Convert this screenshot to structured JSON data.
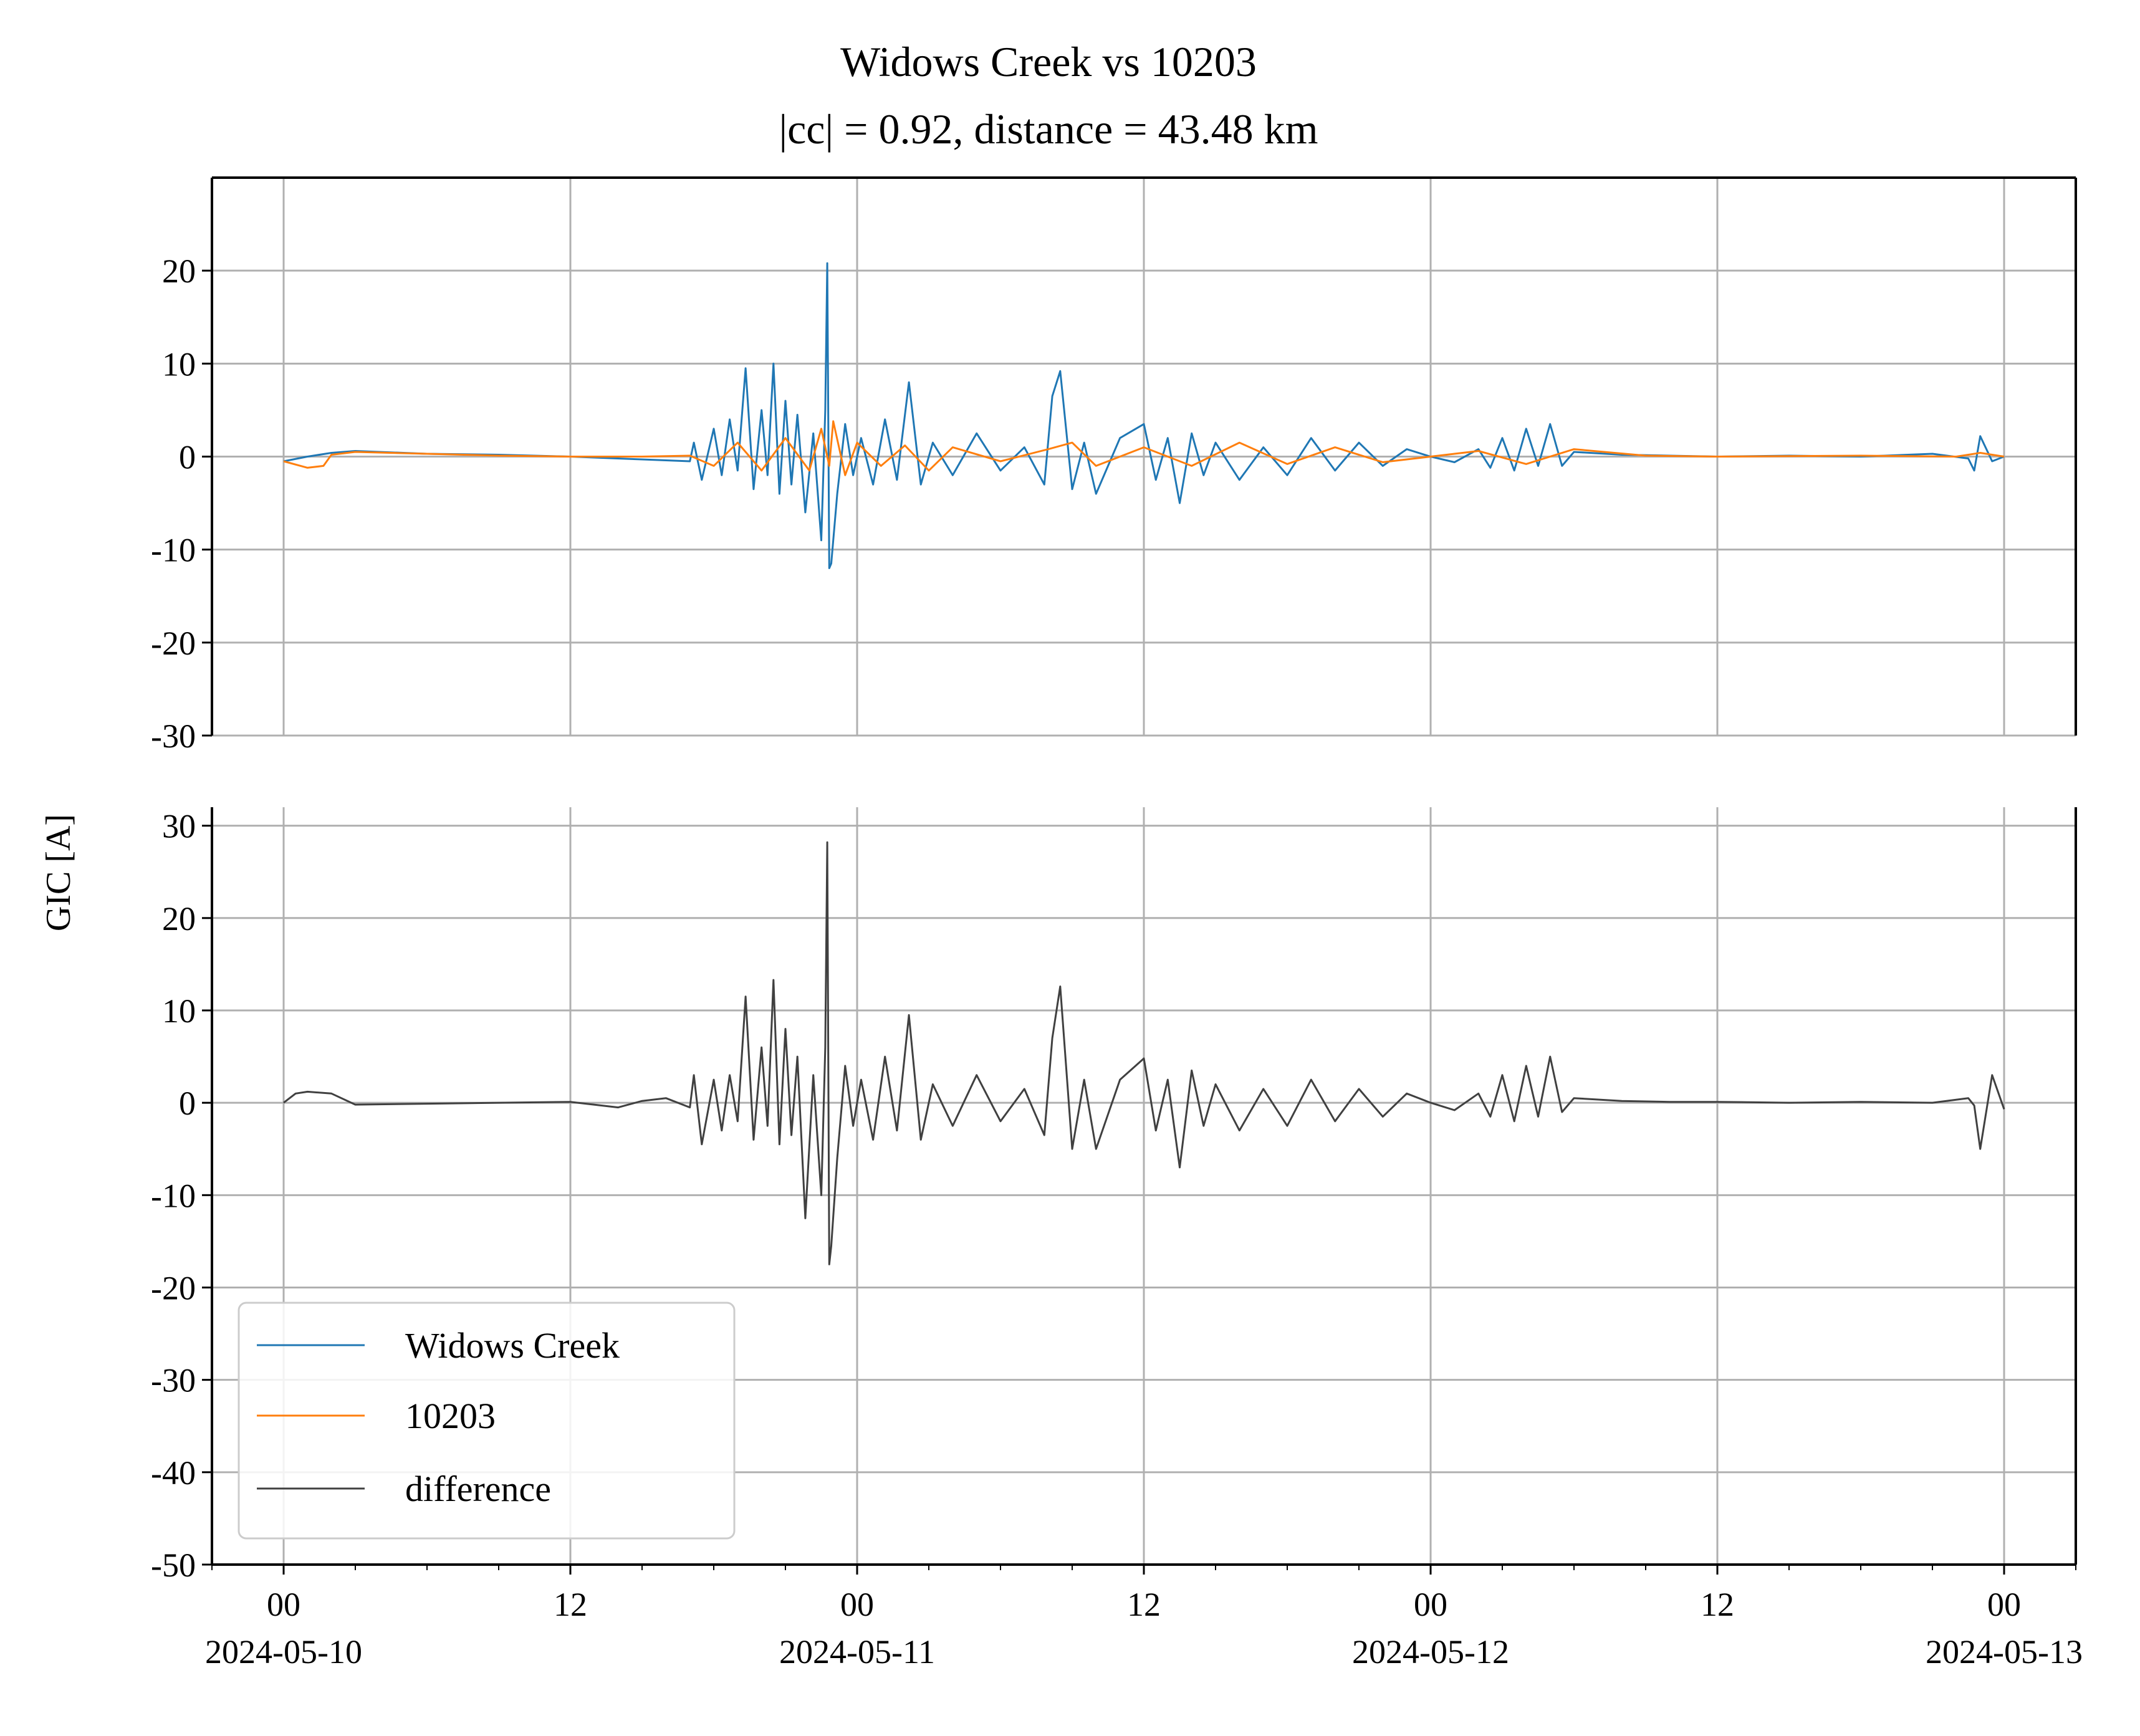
{
  "chart_data": {
    "type": "line",
    "title": "Widows Creek vs 10203",
    "subtitle": "|cc| = 0.92, distance = 43.48 km",
    "ylabel": "GIC [A]",
    "xlabel": "",
    "grid": true,
    "legend_placement": "lower-left",
    "x_range": [
      "2024-05-09T21:00",
      "2024-05-13T03:00"
    ],
    "x_ticks": [
      {
        "time": "2024-05-10T00:00",
        "label": "00",
        "date": "2024-05-10"
      },
      {
        "time": "2024-05-10T12:00",
        "label": "12",
        "date": ""
      },
      {
        "time": "2024-05-11T00:00",
        "label": "00",
        "date": "2024-05-11"
      },
      {
        "time": "2024-05-11T12:00",
        "label": "12",
        "date": ""
      },
      {
        "time": "2024-05-12T00:00",
        "label": "00",
        "date": "2024-05-12"
      },
      {
        "time": "2024-05-12T12:00",
        "label": "12",
        "date": ""
      },
      {
        "time": "2024-05-13T00:00",
        "label": "00",
        "date": "2024-05-13"
      }
    ],
    "panels": [
      {
        "ylim": [
          -30,
          30
        ],
        "y_ticks": [
          20,
          10,
          0,
          -10,
          -20,
          -30
        ],
        "y_tick_labels": [
          "20",
          "10",
          "0",
          "-10",
          "-20",
          "-30"
        ],
        "series": [
          {
            "name": "Widows Creek",
            "color": "#1f77b4",
            "x": [
              "2024-05-10T00:00",
              "2024-05-10T01:00",
              "2024-05-10T02:00",
              "2024-05-10T03:00",
              "2024-05-10T06:00",
              "2024-05-10T09:00",
              "2024-05-10T12:00",
              "2024-05-10T15:00",
              "2024-05-10T17:00",
              "2024-05-10T17:10",
              "2024-05-10T17:30",
              "2024-05-10T18:00",
              "2024-05-10T18:20",
              "2024-05-10T18:40",
              "2024-05-10T19:00",
              "2024-05-10T19:20",
              "2024-05-10T19:40",
              "2024-05-10T20:00",
              "2024-05-10T20:15",
              "2024-05-10T20:30",
              "2024-05-10T20:45",
              "2024-05-10T21:00",
              "2024-05-10T21:15",
              "2024-05-10T21:30",
              "2024-05-10T21:50",
              "2024-05-10T22:10",
              "2024-05-10T22:30",
              "2024-05-10T22:40",
              "2024-05-10T22:45",
              "2024-05-10T22:50",
              "2024-05-10T22:55",
              "2024-05-10T23:10",
              "2024-05-10T23:30",
              "2024-05-10T23:50",
              "2024-05-11T00:10",
              "2024-05-11T00:40",
              "2024-05-11T01:10",
              "2024-05-11T01:40",
              "2024-05-11T02:10",
              "2024-05-11T02:40",
              "2024-05-11T03:10",
              "2024-05-11T04:00",
              "2024-05-11T05:00",
              "2024-05-11T06:00",
              "2024-05-11T07:00",
              "2024-05-11T07:50",
              "2024-05-11T08:10",
              "2024-05-11T08:30",
              "2024-05-11T09:00",
              "2024-05-11T09:30",
              "2024-05-11T10:00",
              "2024-05-11T11:00",
              "2024-05-11T12:00",
              "2024-05-11T12:30",
              "2024-05-11T13:00",
              "2024-05-11T13:30",
              "2024-05-11T14:00",
              "2024-05-11T14:30",
              "2024-05-11T15:00",
              "2024-05-11T16:00",
              "2024-05-11T17:00",
              "2024-05-11T18:00",
              "2024-05-11T19:00",
              "2024-05-11T20:00",
              "2024-05-11T21:00",
              "2024-05-11T22:00",
              "2024-05-11T23:00",
              "2024-05-12T00:00",
              "2024-05-12T01:00",
              "2024-05-12T02:00",
              "2024-05-12T02:30",
              "2024-05-12T03:00",
              "2024-05-12T03:30",
              "2024-05-12T04:00",
              "2024-05-12T04:30",
              "2024-05-12T05:00",
              "2024-05-12T05:30",
              "2024-05-12T06:00",
              "2024-05-12T08:00",
              "2024-05-12T10:00",
              "2024-05-12T12:00",
              "2024-05-12T15:00",
              "2024-05-12T18:00",
              "2024-05-12T21:00",
              "2024-05-12T22:30",
              "2024-05-12T22:45",
              "2024-05-12T23:00",
              "2024-05-12T23:30",
              "2024-05-13T00:00"
            ],
            "y": [
              -0.5,
              0.0,
              0.4,
              0.6,
              0.3,
              0.2,
              0.0,
              -0.3,
              -0.5,
              1.5,
              -2.5,
              3.0,
              -2.0,
              4.0,
              -1.5,
              9.5,
              -3.5,
              5.0,
              -2.0,
              10.0,
              -4.0,
              6.0,
              -3.0,
              4.5,
              -6.0,
              2.5,
              -9.0,
              5.0,
              20.8,
              -12.0,
              -11.5,
              -4.0,
              3.5,
              -2.0,
              2.0,
              -3.0,
              4.0,
              -2.5,
              8.0,
              -3.0,
              1.5,
              -2.0,
              2.5,
              -1.5,
              1.0,
              -3.0,
              6.5,
              9.2,
              -3.5,
              1.5,
              -4.0,
              2.0,
              3.5,
              -2.5,
              2.0,
              -5.0,
              2.5,
              -2.0,
              1.5,
              -2.5,
              1.0,
              -2.0,
              2.0,
              -1.5,
              1.5,
              -1.0,
              0.8,
              0.0,
              -0.6,
              0.8,
              -1.2,
              2.0,
              -1.5,
              3.0,
              -1.0,
              3.5,
              -1.0,
              0.5,
              0.2,
              0.1,
              0.0,
              0.1,
              0.0,
              0.3,
              -0.2,
              -1.5,
              2.2,
              -0.5,
              0.0
            ]
          },
          {
            "name": "10203",
            "color": "#ff7f0e",
            "x": [
              "2024-05-10T00:00",
              "2024-05-10T01:00",
              "2024-05-10T01:40",
              "2024-05-10T02:00",
              "2024-05-10T03:00",
              "2024-05-10T06:00",
              "2024-05-10T09:00",
              "2024-05-10T12:00",
              "2024-05-10T15:00",
              "2024-05-10T17:00",
              "2024-05-10T18:00",
              "2024-05-10T19:00",
              "2024-05-10T20:00",
              "2024-05-10T21:00",
              "2024-05-10T22:00",
              "2024-05-10T22:30",
              "2024-05-10T22:50",
              "2024-05-10T23:00",
              "2024-05-10T23:30",
              "2024-05-11T00:00",
              "2024-05-11T01:00",
              "2024-05-11T02:00",
              "2024-05-11T03:00",
              "2024-05-11T04:00",
              "2024-05-11T06:00",
              "2024-05-11T08:00",
              "2024-05-11T09:00",
              "2024-05-11T10:00",
              "2024-05-11T12:00",
              "2024-05-11T14:00",
              "2024-05-11T16:00",
              "2024-05-11T18:00",
              "2024-05-11T20:00",
              "2024-05-11T22:00",
              "2024-05-12T00:00",
              "2024-05-12T02:00",
              "2024-05-12T04:00",
              "2024-05-12T06:00",
              "2024-05-12T09:00",
              "2024-05-12T12:00",
              "2024-05-12T18:00",
              "2024-05-12T22:00",
              "2024-05-12T23:00",
              "2024-05-13T00:00"
            ],
            "y": [
              -0.5,
              -1.2,
              -1.0,
              0.2,
              0.5,
              0.3,
              0.1,
              0.0,
              0.0,
              0.1,
              -1.0,
              1.5,
              -1.5,
              2.0,
              -1.5,
              3.0,
              -1.0,
              3.8,
              -2.0,
              1.5,
              -1.0,
              1.2,
              -1.5,
              1.0,
              -0.5,
              0.8,
              1.5,
              -1.0,
              1.0,
              -1.0,
              1.5,
              -0.8,
              1.0,
              -0.6,
              0.0,
              0.6,
              -0.8,
              0.8,
              0.1,
              0.0,
              0.1,
              0.0,
              0.4,
              0.0
            ]
          }
        ]
      },
      {
        "ylim": [
          -50,
          32
        ],
        "y_ticks": [
          30,
          20,
          10,
          0,
          -10,
          -20,
          -30,
          -40,
          -50
        ],
        "y_tick_labels": [
          "30",
          "20",
          "10",
          "0",
          "-10",
          "-20",
          "-30",
          "-40",
          "-50"
        ],
        "series": [
          {
            "name": "difference",
            "color": "#404040",
            "x": [
              "2024-05-10T00:00",
              "2024-05-10T00:30",
              "2024-05-10T01:00",
              "2024-05-10T02:00",
              "2024-05-10T03:00",
              "2024-05-10T06:00",
              "2024-05-10T09:00",
              "2024-05-10T12:00",
              "2024-05-10T14:00",
              "2024-05-10T15:00",
              "2024-05-10T16:00",
              "2024-05-10T17:00",
              "2024-05-10T17:10",
              "2024-05-10T17:30",
              "2024-05-10T18:00",
              "2024-05-10T18:20",
              "2024-05-10T18:40",
              "2024-05-10T19:00",
              "2024-05-10T19:20",
              "2024-05-10T19:40",
              "2024-05-10T20:00",
              "2024-05-10T20:15",
              "2024-05-10T20:30",
              "2024-05-10T20:45",
              "2024-05-10T21:00",
              "2024-05-10T21:15",
              "2024-05-10T21:30",
              "2024-05-10T21:50",
              "2024-05-10T22:10",
              "2024-05-10T22:30",
              "2024-05-10T22:40",
              "2024-05-10T22:45",
              "2024-05-10T22:50",
              "2024-05-10T22:55",
              "2024-05-10T23:10",
              "2024-05-10T23:30",
              "2024-05-10T23:50",
              "2024-05-11T00:10",
              "2024-05-11T00:40",
              "2024-05-11T01:10",
              "2024-05-11T01:40",
              "2024-05-11T02:10",
              "2024-05-11T02:40",
              "2024-05-11T03:10",
              "2024-05-11T04:00",
              "2024-05-11T05:00",
              "2024-05-11T06:00",
              "2024-05-11T07:00",
              "2024-05-11T07:50",
              "2024-05-11T08:10",
              "2024-05-11T08:30",
              "2024-05-11T09:00",
              "2024-05-11T09:30",
              "2024-05-11T10:00",
              "2024-05-11T11:00",
              "2024-05-11T12:00",
              "2024-05-11T12:30",
              "2024-05-11T13:00",
              "2024-05-11T13:30",
              "2024-05-11T14:00",
              "2024-05-11T14:30",
              "2024-05-11T15:00",
              "2024-05-11T16:00",
              "2024-05-11T17:00",
              "2024-05-11T18:00",
              "2024-05-11T19:00",
              "2024-05-11T20:00",
              "2024-05-11T21:00",
              "2024-05-11T22:00",
              "2024-05-11T23:00",
              "2024-05-12T00:00",
              "2024-05-12T01:00",
              "2024-05-12T02:00",
              "2024-05-12T02:30",
              "2024-05-12T03:00",
              "2024-05-12T03:30",
              "2024-05-12T04:00",
              "2024-05-12T04:30",
              "2024-05-12T05:00",
              "2024-05-12T05:30",
              "2024-05-12T06:00",
              "2024-05-12T08:00",
              "2024-05-12T10:00",
              "2024-05-12T12:00",
              "2024-05-12T15:00",
              "2024-05-12T18:00",
              "2024-05-12T21:00",
              "2024-05-12T22:30",
              "2024-05-12T22:45",
              "2024-05-12T23:00",
              "2024-05-12T23:30",
              "2024-05-13T00:00"
            ],
            "y": [
              0.0,
              1.0,
              1.2,
              1.0,
              -0.2,
              -0.1,
              0.0,
              0.1,
              -0.5,
              0.2,
              0.5,
              -0.5,
              3.0,
              -4.5,
              2.5,
              -3.0,
              3.0,
              -2.0,
              11.5,
              -4.0,
              6.0,
              -2.5,
              13.3,
              -4.5,
              8.0,
              -3.5,
              5.0,
              -12.5,
              3.0,
              -10.0,
              6.0,
              28.2,
              -17.5,
              -15.5,
              -6.0,
              4.0,
              -2.5,
              2.5,
              -4.0,
              5.0,
              -3.0,
              9.5,
              -4.0,
              2.0,
              -2.5,
              3.0,
              -2.0,
              1.5,
              -3.5,
              7.0,
              12.6,
              -5.0,
              2.5,
              -5.0,
              2.5,
              4.8,
              -3.0,
              2.5,
              -7.0,
              3.5,
              -2.5,
              2.0,
              -3.0,
              1.5,
              -2.5,
              2.5,
              -2.0,
              1.5,
              -1.5,
              1.0,
              0.0,
              -0.8,
              1.0,
              -1.5,
              3.0,
              -2.0,
              4.0,
              -1.5,
              5.0,
              -1.0,
              0.5,
              0.2,
              0.1,
              0.1,
              0.0,
              0.1,
              0.0,
              0.5,
              -0.3,
              -5.0,
              3.0,
              -0.7
            ]
          }
        ]
      }
    ]
  }
}
